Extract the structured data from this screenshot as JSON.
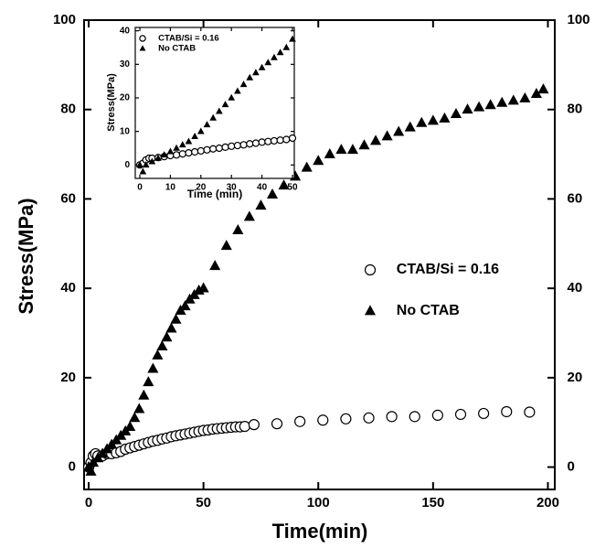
{
  "chart_data": [
    {
      "type": "scatter",
      "xlabel": "Time(min)",
      "ylabel": "Stress(MPa)",
      "xlim": [
        -2,
        203
      ],
      "ylim": [
        -5,
        100
      ],
      "xticks": [
        0,
        50,
        100,
        150,
        200
      ],
      "yticks": [
        0,
        20,
        40,
        60,
        80,
        100
      ],
      "mirror_y_labels": true,
      "legend": "right",
      "series": [
        {
          "name": "CTAB/Si = 0.16",
          "marker": "circle",
          "color": "#000000",
          "x": [
            0,
            1,
            2,
            3,
            4,
            6,
            8,
            10,
            12,
            14,
            16,
            18,
            20,
            22,
            24,
            26,
            28,
            30,
            32,
            34,
            36,
            38,
            40,
            42,
            44,
            46,
            48,
            50,
            52,
            54,
            56,
            58,
            60,
            62,
            64,
            66,
            68,
            72,
            82,
            92,
            102,
            112,
            122,
            132,
            142,
            152,
            162,
            172,
            182,
            192
          ],
          "values": [
            0,
            1,
            2.5,
            3,
            2.5,
            2.5,
            3,
            3,
            3.2,
            3.5,
            4,
            4.3,
            4.6,
            4.9,
            5.2,
            5.5,
            5.8,
            6,
            6.3,
            6.5,
            6.8,
            7,
            7.2,
            7.4,
            7.6,
            7.8,
            8,
            8.2,
            8.3,
            8.5,
            8.6,
            8.7,
            8.8,
            8.9,
            9,
            9,
            9.1,
            9.5,
            9.7,
            10.2,
            10.5,
            10.8,
            11,
            11.3,
            11.3,
            11.6,
            11.8,
            12,
            12.4,
            12.3
          ]
        },
        {
          "name": "No CTAB",
          "marker": "triangle",
          "color": "#000000",
          "x": [
            0,
            1,
            2,
            4,
            6,
            8,
            10,
            12,
            14,
            16,
            18,
            20,
            22,
            24,
            26,
            28,
            30,
            32,
            34,
            36,
            38,
            40,
            42,
            44,
            46,
            48,
            50,
            55,
            60,
            65,
            70,
            75,
            80,
            85,
            90,
            95,
            100,
            105,
            110,
            115,
            120,
            125,
            130,
            135,
            140,
            145,
            150,
            155,
            160,
            165,
            170,
            175,
            180,
            185,
            190,
            195,
            198
          ],
          "values": [
            0,
            -1,
            1,
            2,
            3,
            4,
            5,
            6,
            7,
            8,
            9,
            11,
            13,
            16,
            19,
            22,
            25,
            27,
            29,
            31,
            33,
            35,
            36,
            37.5,
            38.5,
            39.5,
            40,
            45,
            49.5,
            53,
            56,
            58.5,
            61,
            63,
            65,
            67,
            68.5,
            70,
            71,
            71,
            72,
            73,
            74,
            75,
            76,
            77,
            77.5,
            78,
            79,
            80,
            80.5,
            81,
            81.5,
            82,
            82.5,
            83.5,
            84.5
          ]
        }
      ]
    },
    {
      "type": "scatter",
      "xlabel": "Time (min)",
      "ylabel": "Stress(MPa)",
      "xlim": [
        -1.5,
        50.6
      ],
      "ylim": [
        -4,
        41
      ],
      "xticks": [
        0,
        10,
        20,
        30,
        40,
        50
      ],
      "yticks": [
        0,
        10,
        20,
        30,
        40
      ],
      "mirror_y_labels": false,
      "legend": "upper left",
      "series": [
        {
          "name": "CTAB/Si = 0.16",
          "marker": "circle",
          "color": "#000000",
          "x": [
            0,
            1,
            2,
            3,
            4,
            6,
            8,
            10,
            12,
            14,
            16,
            18,
            20,
            22,
            24,
            26,
            28,
            30,
            32,
            34,
            36,
            38,
            40,
            42,
            44,
            46,
            48,
            50
          ],
          "values": [
            0,
            0.5,
            1.5,
            2,
            2,
            2.2,
            2.5,
            2.8,
            3,
            3.3,
            3.6,
            3.9,
            4.2,
            4.5,
            4.8,
            5,
            5.3,
            5.6,
            5.8,
            6,
            6.3,
            6.5,
            6.8,
            7,
            7.2,
            7.4,
            7.6,
            8
          ]
        },
        {
          "name": "No CTAB",
          "marker": "triangle",
          "color": "#000000",
          "x": [
            0,
            1,
            2,
            4,
            6,
            8,
            10,
            12,
            14,
            16,
            18,
            20,
            22,
            24,
            26,
            28,
            30,
            32,
            34,
            36,
            38,
            40,
            42,
            44,
            46,
            48,
            50
          ],
          "values": [
            0,
            -2,
            0,
            1,
            2,
            3,
            4,
            5,
            6,
            7,
            8.5,
            10,
            12,
            14,
            16,
            18,
            20,
            22,
            24,
            26,
            27.5,
            29,
            30.5,
            32,
            33.5,
            35,
            37.5
          ]
        }
      ]
    }
  ]
}
